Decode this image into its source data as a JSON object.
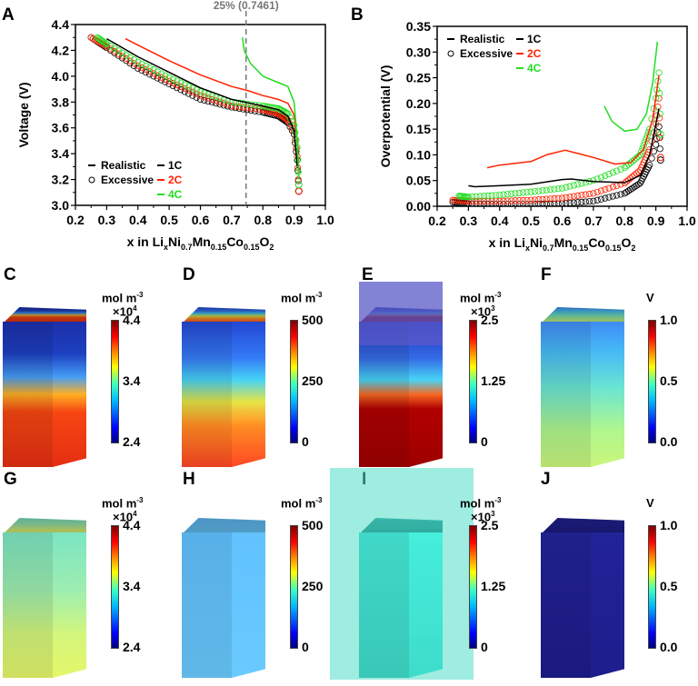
{
  "colors": {
    "realistic_1c": "#000000",
    "rate_2c": "#ff2200",
    "rate_4c": "#22dd22",
    "dashed": "#777777"
  },
  "chart_data": [
    {
      "panel": "A",
      "type": "line",
      "ylabel": "Voltage (V)",
      "xlabel_parts": [
        {
          "t": "x in Li",
          "sub": false
        },
        {
          "t": "x",
          "sub": true
        },
        {
          "t": "Ni",
          "sub": false
        },
        {
          "t": "0.7",
          "sub": true
        },
        {
          "t": "Mn",
          "sub": false
        },
        {
          "t": "0.15",
          "sub": true
        },
        {
          "t": "Co",
          "sub": false
        },
        {
          "t": "0.15",
          "sub": true
        },
        {
          "t": "O",
          "sub": false
        },
        {
          "t": "2",
          "sub": true
        }
      ],
      "xlim": [
        0.2,
        1.0
      ],
      "ylim": [
        3.0,
        4.4
      ],
      "xticks": [
        "0.2",
        "0.3",
        "0.4",
        "0.5",
        "0.6",
        "0.7",
        "0.8",
        "0.9",
        "1.0"
      ],
      "yticks": [
        "3.0",
        "3.2",
        "3.4",
        "3.6",
        "3.8",
        "4.0",
        "4.2",
        "4.4"
      ],
      "annotation": {
        "text": "25% (0.7461)",
        "x": 0.7461
      },
      "legend": {
        "placement": "bottom-left",
        "style_entries": [
          "Realistic",
          "Excessive"
        ],
        "rate_entries": [
          "1C",
          "2C",
          "4C"
        ]
      },
      "series": [
        {
          "style": "Realistic",
          "rate": "1C",
          "color": "#000000",
          "x": [
            0.3,
            0.4,
            0.5,
            0.6,
            0.7,
            0.8,
            0.85,
            0.88,
            0.9,
            0.91
          ],
          "y": [
            4.29,
            4.15,
            4.03,
            3.91,
            3.82,
            3.77,
            3.74,
            3.69,
            3.58,
            3.3
          ]
        },
        {
          "style": "Realistic",
          "rate": "2C",
          "color": "#ff2200",
          "x": [
            0.36,
            0.4,
            0.5,
            0.6,
            0.7,
            0.75,
            0.8,
            0.85,
            0.88,
            0.9,
            0.91,
            0.915
          ],
          "y": [
            4.29,
            4.24,
            4.12,
            4.01,
            3.92,
            3.89,
            3.85,
            3.82,
            3.79,
            3.7,
            3.5,
            3.25
          ]
        },
        {
          "style": "Realistic",
          "rate": "4C",
          "color": "#22dd22",
          "x": [
            0.735,
            0.74,
            0.76,
            0.8,
            0.85,
            0.88,
            0.9,
            0.91,
            0.915
          ],
          "y": [
            4.3,
            4.2,
            4.1,
            4.0,
            3.95,
            3.92,
            3.8,
            3.5,
            3.2
          ]
        },
        {
          "style": "Excessive",
          "rate": "1C",
          "color": "#000000",
          "x": [
            0.25,
            0.3,
            0.4,
            0.5,
            0.6,
            0.7,
            0.8,
            0.85,
            0.88,
            0.9,
            0.91,
            0.915
          ],
          "y": [
            4.3,
            4.22,
            4.06,
            3.94,
            3.82,
            3.76,
            3.72,
            3.69,
            3.64,
            3.55,
            3.35,
            3.11
          ]
        },
        {
          "style": "Excessive",
          "rate": "2C",
          "color": "#ff2200",
          "x": [
            0.25,
            0.3,
            0.4,
            0.5,
            0.6,
            0.7,
            0.8,
            0.85,
            0.88,
            0.9,
            0.91,
            0.915
          ],
          "y": [
            4.3,
            4.23,
            4.08,
            3.96,
            3.85,
            3.77,
            3.74,
            3.71,
            3.66,
            3.57,
            3.38,
            3.11
          ]
        },
        {
          "style": "Excessive",
          "rate": "4C",
          "color": "#22dd22",
          "x": [
            0.27,
            0.3,
            0.4,
            0.5,
            0.6,
            0.7,
            0.8,
            0.85,
            0.88,
            0.9,
            0.91,
            0.915
          ],
          "y": [
            4.3,
            4.25,
            4.11,
            3.99,
            3.88,
            3.8,
            3.77,
            3.75,
            3.71,
            3.62,
            3.45,
            3.16
          ]
        }
      ]
    },
    {
      "panel": "B",
      "type": "line",
      "ylabel": "Overpotential (V)",
      "xlabel_parts": [
        {
          "t": "x in Li",
          "sub": false
        },
        {
          "t": "x",
          "sub": true
        },
        {
          "t": "Ni",
          "sub": false
        },
        {
          "t": "0.7",
          "sub": true
        },
        {
          "t": "Mn",
          "sub": false
        },
        {
          "t": "0.15",
          "sub": true
        },
        {
          "t": "Co",
          "sub": false
        },
        {
          "t": "0.15",
          "sub": true
        },
        {
          "t": "O",
          "sub": false
        },
        {
          "t": "2",
          "sub": true
        }
      ],
      "xlim": [
        0.2,
        1.0
      ],
      "ylim": [
        0,
        0.35
      ],
      "xticks": [
        "0.2",
        "0.3",
        "0.4",
        "0.5",
        "0.6",
        "0.7",
        "0.8",
        "0.9",
        "1.0"
      ],
      "yticks": [
        "0.00",
        "0.05",
        "0.10",
        "0.15",
        "0.20",
        "0.25",
        "0.30",
        "0.35"
      ],
      "legend": {
        "placement": "top-left",
        "style_entries": [
          "Realistic",
          "Excessive"
        ],
        "rate_entries": [
          "1C",
          "2C",
          "4C"
        ]
      },
      "series": [
        {
          "style": "Realistic",
          "rate": "1C",
          "color": "#000000",
          "x": [
            0.3,
            0.32,
            0.4,
            0.5,
            0.6,
            0.63,
            0.7,
            0.8,
            0.85,
            0.88,
            0.9,
            0.91
          ],
          "y": [
            0.04,
            0.038,
            0.04,
            0.043,
            0.052,
            0.053,
            0.048,
            0.046,
            0.06,
            0.1,
            0.16,
            0.19
          ]
        },
        {
          "style": "Realistic",
          "rate": "2C",
          "color": "#ff2200",
          "x": [
            0.36,
            0.4,
            0.5,
            0.55,
            0.61,
            0.7,
            0.77,
            0.82,
            0.86,
            0.89,
            0.91
          ],
          "y": [
            0.075,
            0.08,
            0.087,
            0.1,
            0.109,
            0.095,
            0.082,
            0.085,
            0.11,
            0.17,
            0.255
          ]
        },
        {
          "style": "Realistic",
          "rate": "4C",
          "color": "#22dd22",
          "x": [
            0.735,
            0.76,
            0.8,
            0.84,
            0.87,
            0.89,
            0.905
          ],
          "y": [
            0.195,
            0.165,
            0.146,
            0.15,
            0.18,
            0.24,
            0.32
          ]
        },
        {
          "style": "Excessive",
          "rate": "1C",
          "color": "#000000",
          "x": [
            0.25,
            0.3,
            0.4,
            0.5,
            0.6,
            0.7,
            0.8,
            0.85,
            0.88,
            0.9,
            0.91,
            0.915
          ],
          "y": [
            0.008,
            0.005,
            0.004,
            0.004,
            0.005,
            0.01,
            0.025,
            0.045,
            0.08,
            0.12,
            0.155,
            0.09
          ]
        },
        {
          "style": "Excessive",
          "rate": "2C",
          "color": "#ff2200",
          "x": [
            0.25,
            0.3,
            0.4,
            0.5,
            0.6,
            0.7,
            0.8,
            0.85,
            0.88,
            0.9,
            0.91,
            0.915
          ],
          "y": [
            0.012,
            0.01,
            0.01,
            0.012,
            0.016,
            0.025,
            0.045,
            0.07,
            0.11,
            0.16,
            0.21,
            0.095
          ]
        },
        {
          "style": "Excessive",
          "rate": "4C",
          "color": "#22dd22",
          "x": [
            0.27,
            0.3,
            0.4,
            0.5,
            0.6,
            0.7,
            0.8,
            0.85,
            0.88,
            0.9,
            0.91,
            0.915
          ],
          "y": [
            0.02,
            0.018,
            0.022,
            0.028,
            0.035,
            0.05,
            0.075,
            0.1,
            0.15,
            0.21,
            0.26,
            0.14
          ]
        }
      ]
    }
  ],
  "renders": [
    {
      "label": "C",
      "unit": "mol m",
      "unit_exp": "-3",
      "mult": "×10",
      "mult_exp": "4",
      "ticks": [
        "4.4",
        "3.4",
        "2.4"
      ],
      "colormap": "jet"
    },
    {
      "label": "D",
      "unit": "mol m",
      "unit_exp": "-3",
      "mult": "",
      "mult_exp": "",
      "ticks": [
        "500",
        "250",
        "0"
      ],
      "colormap": "jet"
    },
    {
      "label": "E",
      "unit": "mol m",
      "unit_exp": "-3",
      "mult": "×10",
      "mult_exp": "3",
      "ticks": [
        "2.5",
        "1.25",
        "0"
      ],
      "colormap": "jet"
    },
    {
      "label": "F",
      "unit": "V",
      "unit_exp": "",
      "mult": "",
      "mult_exp": "",
      "ticks": [
        "1.0",
        "0.5",
        "0.0"
      ],
      "colormap": "jet"
    },
    {
      "label": "G",
      "unit": "mol m",
      "unit_exp": "-3",
      "mult": "×10",
      "mult_exp": "4",
      "ticks": [
        "4.4",
        "3.4",
        "2.4"
      ],
      "colormap": "jet"
    },
    {
      "label": "H",
      "unit": "mol m",
      "unit_exp": "-3",
      "mult": "",
      "mult_exp": "",
      "ticks": [
        "500",
        "250",
        "0"
      ],
      "colormap": "jet"
    },
    {
      "label": "I",
      "unit": "mol m",
      "unit_exp": "-3",
      "mult": "×10",
      "mult_exp": "3",
      "ticks": [
        "2.5",
        "1.25",
        "0"
      ],
      "colormap": "jet"
    },
    {
      "label": "J",
      "unit": "V",
      "unit_exp": "",
      "mult": "",
      "mult_exp": "",
      "ticks": [
        "1.0",
        "0.5",
        "0.0"
      ],
      "colormap": "jet"
    }
  ]
}
